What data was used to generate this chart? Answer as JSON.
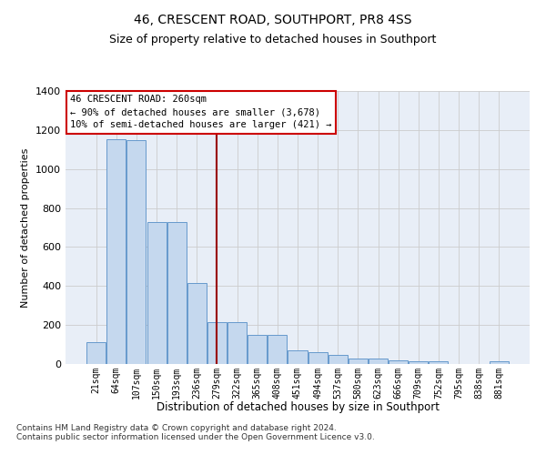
{
  "title": "46, CRESCENT ROAD, SOUTHPORT, PR8 4SS",
  "subtitle": "Size of property relative to detached houses in Southport",
  "xlabel": "Distribution of detached houses by size in Southport",
  "ylabel": "Number of detached properties",
  "categories": [
    "21sqm",
    "64sqm",
    "107sqm",
    "150sqm",
    "193sqm",
    "236sqm",
    "279sqm",
    "322sqm",
    "365sqm",
    "408sqm",
    "451sqm",
    "494sqm",
    "537sqm",
    "580sqm",
    "623sqm",
    "666sqm",
    "709sqm",
    "752sqm",
    "795sqm",
    "838sqm",
    "881sqm"
  ],
  "values": [
    110,
    1155,
    1150,
    730,
    730,
    415,
    215,
    215,
    150,
    150,
    68,
    62,
    46,
    30,
    30,
    18,
    16,
    16,
    0,
    0,
    16
  ],
  "bar_color": "#c5d8ee",
  "bar_edge_color": "#6699cc",
  "grid_color": "#cccccc",
  "background_color": "#e8eef7",
  "vline_x": 6,
  "vline_color": "#990000",
  "annotation_text": "46 CRESCENT ROAD: 260sqm\n← 90% of detached houses are smaller (3,678)\n10% of semi-detached houses are larger (421) →",
  "annotation_box_color": "white",
  "annotation_box_edge": "#cc0000",
  "ylim": [
    0,
    1400
  ],
  "yticks": [
    0,
    200,
    400,
    600,
    800,
    1000,
    1200,
    1400
  ],
  "footnote": "Contains HM Land Registry data © Crown copyright and database right 2024.\nContains public sector information licensed under the Open Government Licence v3.0."
}
